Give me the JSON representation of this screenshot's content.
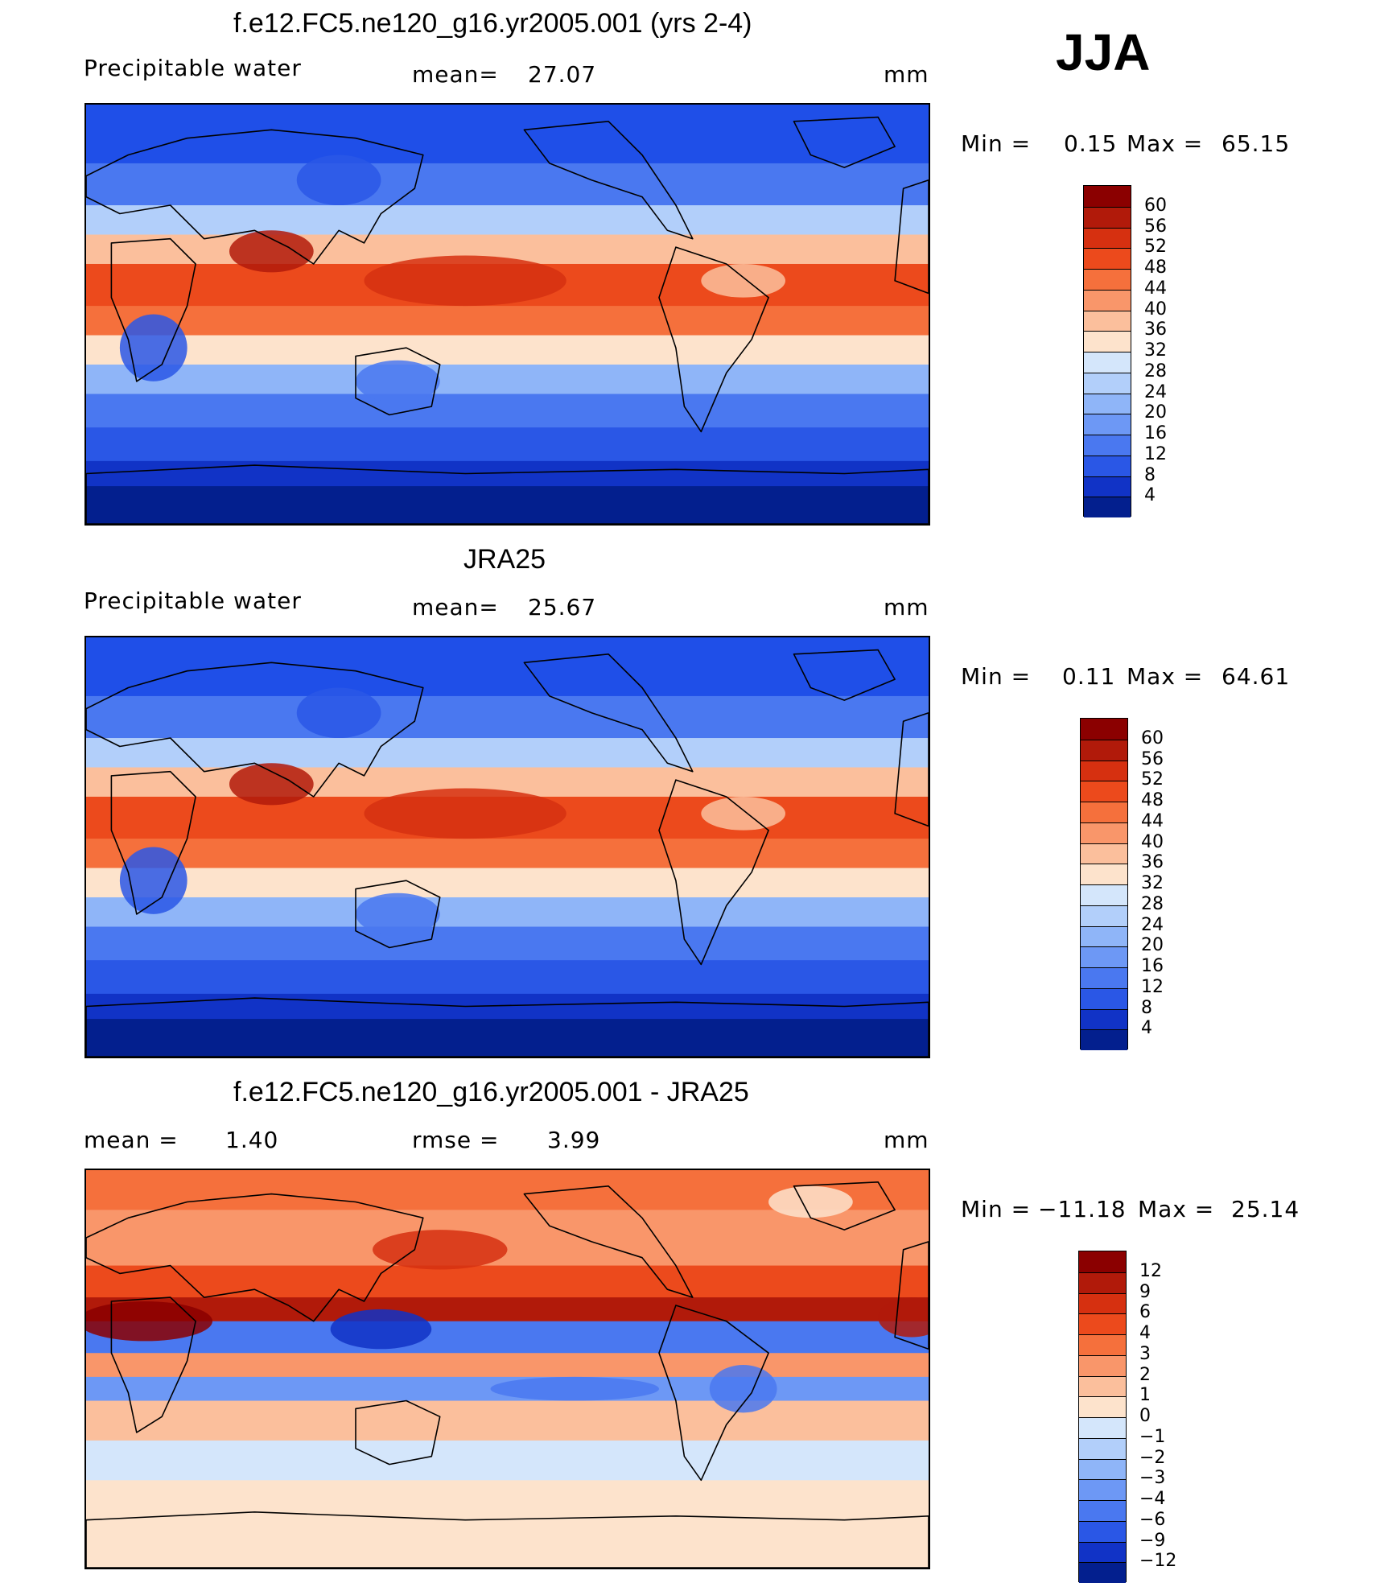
{
  "season": "JJA",
  "panels": [
    {
      "title": "f.e12.FC5.ne120_g16.yr2005.001 (yrs 2-4)",
      "left_label": "Precipitable water",
      "center_label": "mean=",
      "center_value": "27.07",
      "units": "mm",
      "min_label": "Min =",
      "min_value": "0.15",
      "max_label": "Max =",
      "max_value": "65.15",
      "colorbar_ticks": [
        "60",
        "56",
        "52",
        "48",
        "44",
        "40",
        "36",
        "32",
        "28",
        "24",
        "20",
        "16",
        "12",
        "8",
        "4"
      ],
      "colorbar_colors": [
        "#8b0000",
        "#b11a0a",
        "#d63010",
        "#ec4a1c",
        "#f5703c",
        "#f9966a",
        "#fbbf9c",
        "#fde3cc",
        "#d4e6fb",
        "#b2cffa",
        "#8fb5f8",
        "#6d98f5",
        "#4a78f0",
        "#2a57e6",
        "#1133c6",
        "#031f8e"
      ],
      "map_palette": "full"
    },
    {
      "title": "JRA25",
      "left_label": "Precipitable water",
      "center_label": "mean=",
      "center_value": "25.67",
      "units": "mm",
      "min_label": "Min =",
      "min_value": "0.11",
      "max_label": "Max =",
      "max_value": "64.61",
      "colorbar_ticks": [
        "60",
        "56",
        "52",
        "48",
        "44",
        "40",
        "36",
        "32",
        "28",
        "24",
        "20",
        "16",
        "12",
        "8",
        "4"
      ],
      "colorbar_colors": [
        "#8b0000",
        "#b11a0a",
        "#d63010",
        "#ec4a1c",
        "#f5703c",
        "#f9966a",
        "#fbbf9c",
        "#fde3cc",
        "#d4e6fb",
        "#b2cffa",
        "#8fb5f8",
        "#6d98f5",
        "#4a78f0",
        "#2a57e6",
        "#1133c6",
        "#031f8e"
      ],
      "map_palette": "full"
    },
    {
      "title": "f.e12.FC5.ne120_g16.yr2005.001 - JRA25",
      "left_label": "mean =",
      "left_value": "1.40",
      "center_label": "rmse =",
      "center_value": "3.99",
      "units": "mm",
      "min_label": "Min =",
      "min_value": "−11.18",
      "max_label": "Max =",
      "max_value": "25.14",
      "colorbar_ticks": [
        "12",
        "9",
        "6",
        "4",
        "3",
        "2",
        "1",
        "0",
        "−1",
        "−2",
        "−3",
        "−4",
        "−6",
        "−9",
        "−12"
      ],
      "colorbar_colors": [
        "#8b0000",
        "#b11a0a",
        "#d63010",
        "#ec4a1c",
        "#f5703c",
        "#f9966a",
        "#fbbf9c",
        "#fde3cc",
        "#d4e6fb",
        "#b2cffa",
        "#8fb5f8",
        "#6d98f5",
        "#4a78f0",
        "#2a57e6",
        "#1133c6",
        "#031f8e"
      ],
      "map_palette": "diff"
    }
  ]
}
